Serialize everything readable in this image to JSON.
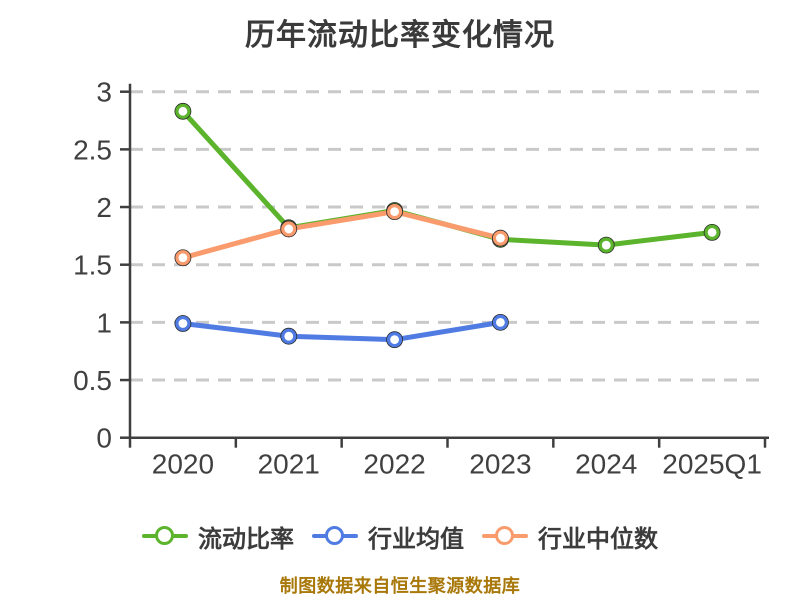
{
  "chart_data": {
    "type": "line",
    "title": "历年流动比率变化情况",
    "categories": [
      "2020",
      "2021",
      "2022",
      "2023",
      "2024",
      "2025Q1"
    ],
    "series": [
      {
        "name": "流动比率",
        "color": "#5BB42C",
        "values": [
          2.83,
          1.82,
          1.97,
          1.72,
          1.67,
          1.78
        ]
      },
      {
        "name": "行业均值",
        "color": "#4F7BE3",
        "values": [
          0.99,
          0.88,
          0.85,
          1.0,
          null,
          null
        ]
      },
      {
        "name": "行业中位数",
        "color": "#F99B6C",
        "values": [
          1.56,
          1.81,
          1.96,
          1.73,
          null,
          null
        ]
      }
    ],
    "ylim": [
      0,
      3
    ],
    "yticks": [
      0,
      0.5,
      1,
      1.5,
      2,
      2.5,
      3
    ],
    "grid": "horizontal-dashed",
    "legend_position": "bottom",
    "marker": "hollow-circle",
    "xlabel": "",
    "ylabel": ""
  },
  "caption": {
    "text": "制图数据来自恒生聚源数据库"
  },
  "colors": {
    "background": "#FFFFFF",
    "title_text": "#3A3A3A",
    "axis_line": "#3F3F3F",
    "tick_text": "#404040",
    "grid_line": "#C9C9C9",
    "legend_text": "#3C3C3C",
    "caption_text": "#A8780A",
    "marker_fill": "#FFFFFF",
    "marker_edge": "#2B2B2B"
  }
}
